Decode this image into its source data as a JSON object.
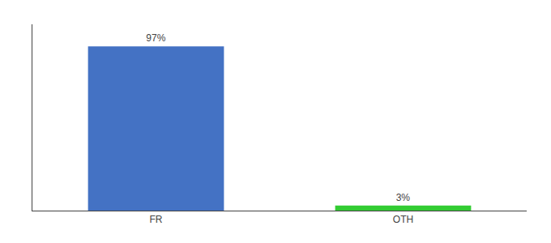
{
  "chart_data": {
    "type": "bar",
    "categories": [
      "FR",
      "OTH"
    ],
    "values": [
      97,
      3
    ],
    "value_labels": [
      "97%",
      "3%"
    ],
    "colors": [
      "#4472c4",
      "#33cc33"
    ],
    "ylim": [
      0,
      110
    ],
    "data_labels": true,
    "tick_labels": "x",
    "grid": false
  }
}
